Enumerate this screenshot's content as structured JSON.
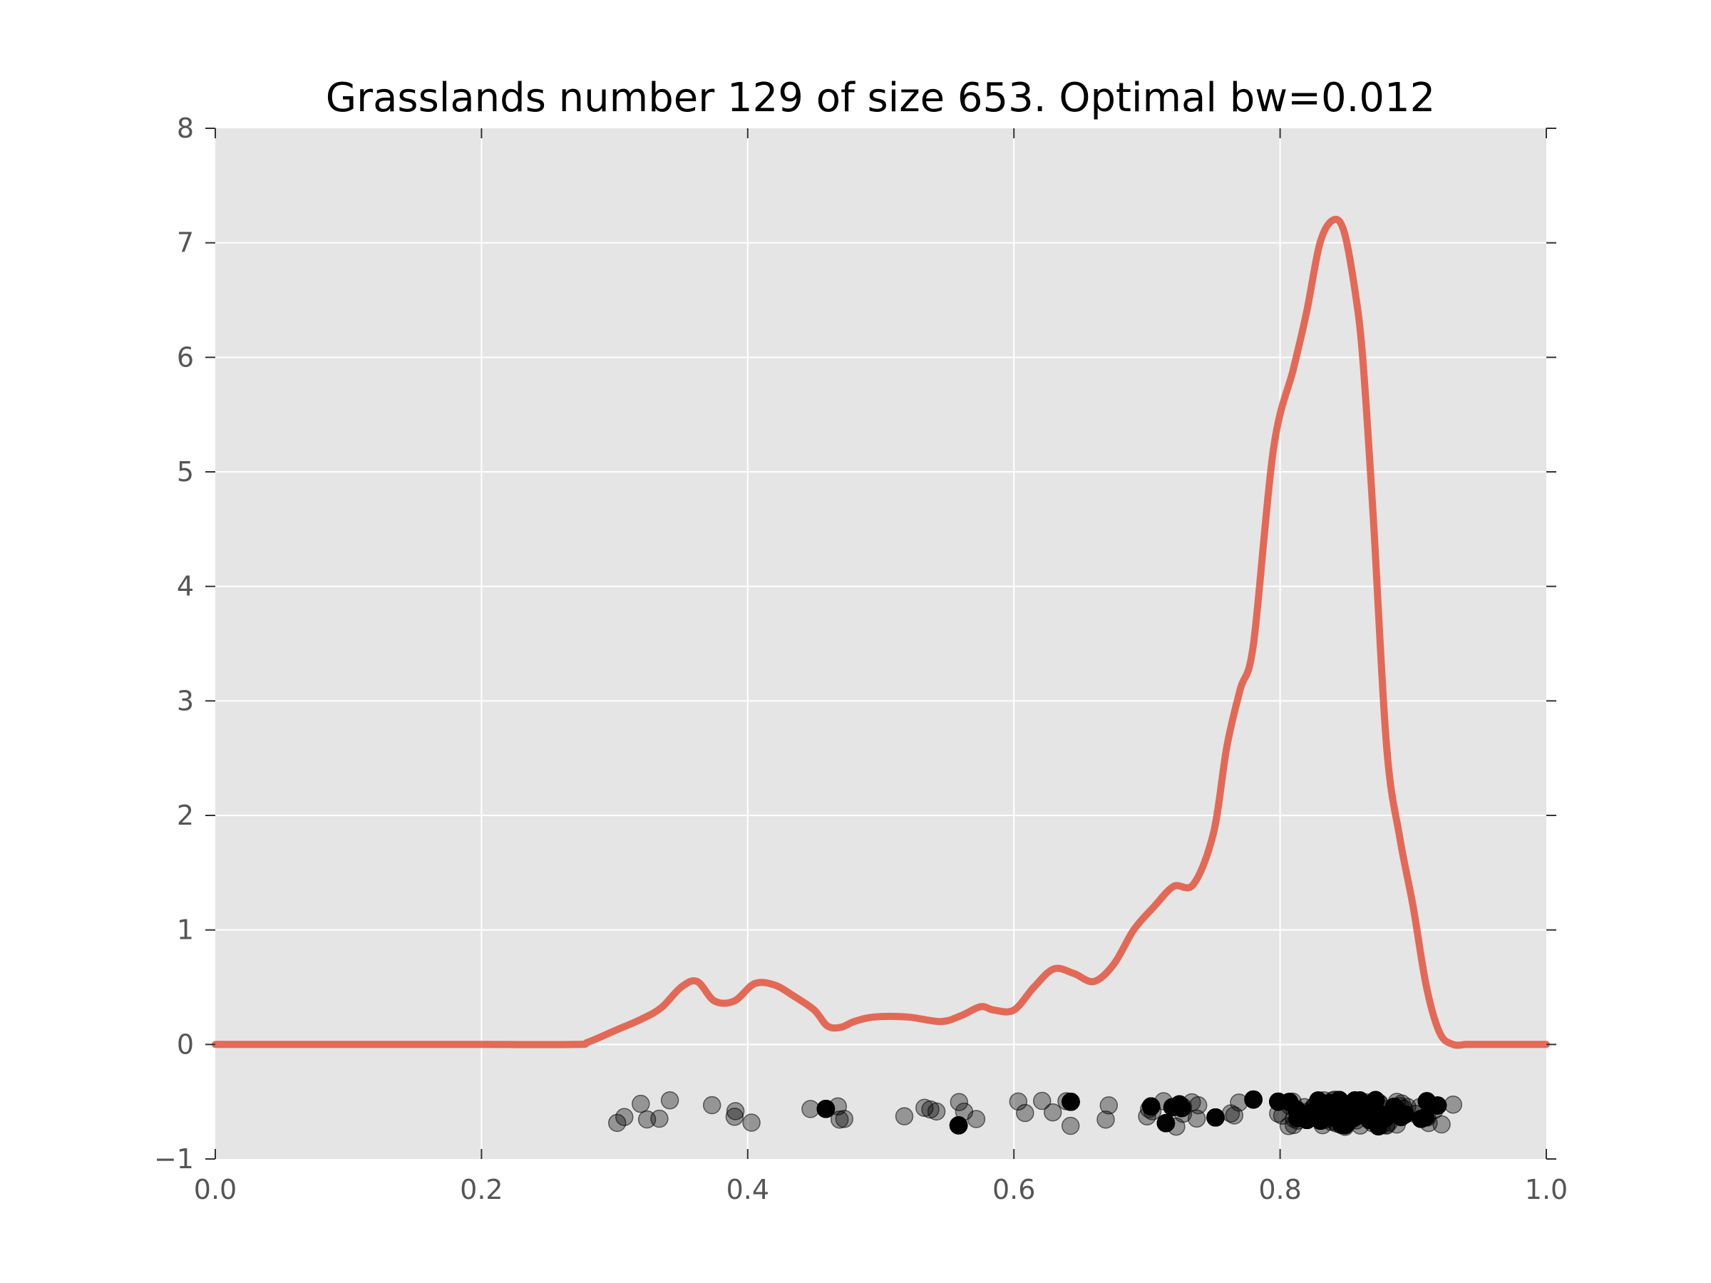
{
  "chart_data": {
    "type": "line",
    "title": "Grasslands number 129 of size 653. Optimal bw=0.012",
    "xlabel": "",
    "ylabel": "",
    "xlim": [
      0.0,
      1.0
    ],
    "ylim": [
      -1,
      8
    ],
    "xticks": [
      "0.0",
      "0.2",
      "0.4",
      "0.6",
      "0.8",
      "1.0"
    ],
    "xtick_values": [
      0.0,
      0.2,
      0.4,
      0.6,
      0.8,
      1.0
    ],
    "yticks": [
      "−1",
      "0",
      "1",
      "2",
      "3",
      "4",
      "5",
      "6",
      "7",
      "8"
    ],
    "ytick_values": [
      -1,
      0,
      1,
      2,
      3,
      4,
      5,
      6,
      7,
      8
    ],
    "grid": true,
    "background_color": "#e5e5e5",
    "grid_color": "#ffffff",
    "series": [
      {
        "kind": "density-line",
        "color": "#e24a33",
        "x": [
          0.0,
          0.1,
          0.2,
          0.27,
          0.28,
          0.3,
          0.32,
          0.335,
          0.35,
          0.362,
          0.375,
          0.39,
          0.405,
          0.42,
          0.435,
          0.45,
          0.46,
          0.47,
          0.48,
          0.495,
          0.52,
          0.545,
          0.56,
          0.575,
          0.585,
          0.6,
          0.615,
          0.63,
          0.645,
          0.66,
          0.675,
          0.69,
          0.705,
          0.72,
          0.735,
          0.75,
          0.76,
          0.77,
          0.78,
          0.795,
          0.81,
          0.82,
          0.83,
          0.84,
          0.848,
          0.856,
          0.862,
          0.87,
          0.88,
          0.89,
          0.9,
          0.91,
          0.92,
          0.93,
          0.94,
          0.95,
          0.96,
          1.0
        ],
        "y": [
          0.0,
          0.0,
          0.0,
          0.0,
          0.02,
          0.12,
          0.22,
          0.32,
          0.5,
          0.55,
          0.38,
          0.38,
          0.53,
          0.52,
          0.42,
          0.3,
          0.16,
          0.15,
          0.2,
          0.24,
          0.24,
          0.2,
          0.25,
          0.33,
          0.3,
          0.3,
          0.5,
          0.66,
          0.62,
          0.55,
          0.7,
          1.0,
          1.2,
          1.38,
          1.4,
          1.85,
          2.6,
          3.1,
          3.5,
          5.2,
          5.9,
          6.4,
          7.0,
          7.2,
          7.1,
          6.6,
          6.0,
          4.6,
          2.6,
          1.8,
          1.2,
          0.5,
          0.1,
          0.0,
          0.0,
          0.0,
          0.0,
          0.0
        ]
      },
      {
        "kind": "rug-scatter",
        "color": "#000000",
        "opacity": 0.35,
        "count": 653,
        "x_range": [
          0.3,
          0.93
        ],
        "y_range": [
          -0.72,
          -0.48
        ]
      }
    ]
  }
}
